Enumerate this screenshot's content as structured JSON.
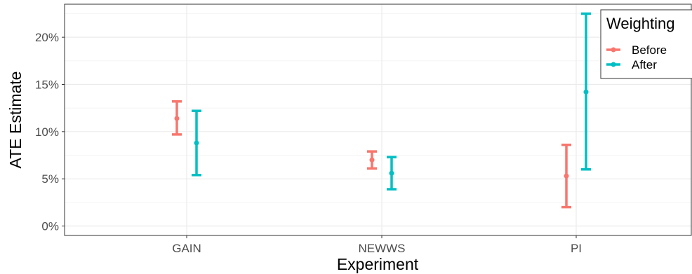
{
  "chart_data": {
    "type": "errorbar",
    "xlabel": "Experiment",
    "ylabel": "ATE Estimate",
    "categories": [
      "GAIN",
      "NEWWS",
      "PI"
    ],
    "ylim": [
      -0.01,
      0.235
    ],
    "yticks": [
      0,
      0.05,
      0.1,
      0.15,
      0.2
    ],
    "ytick_labels": [
      "0%",
      "5%",
      "10%",
      "15%",
      "20%"
    ],
    "grid": true,
    "legend": {
      "title": "Weighting",
      "position": "top-right",
      "entries": [
        "Before",
        "After"
      ]
    },
    "series": [
      {
        "name": "Before",
        "color": "#F8766D",
        "estimates": [
          0.114,
          0.07,
          0.053
        ],
        "lower": [
          0.097,
          0.061,
          0.02
        ],
        "upper": [
          0.132,
          0.079,
          0.086
        ]
      },
      {
        "name": "After",
        "color": "#00BFC4",
        "estimates": [
          0.088,
          0.056,
          0.142
        ],
        "lower": [
          0.054,
          0.039,
          0.06
        ],
        "upper": [
          0.122,
          0.073,
          0.225
        ]
      }
    ]
  }
}
